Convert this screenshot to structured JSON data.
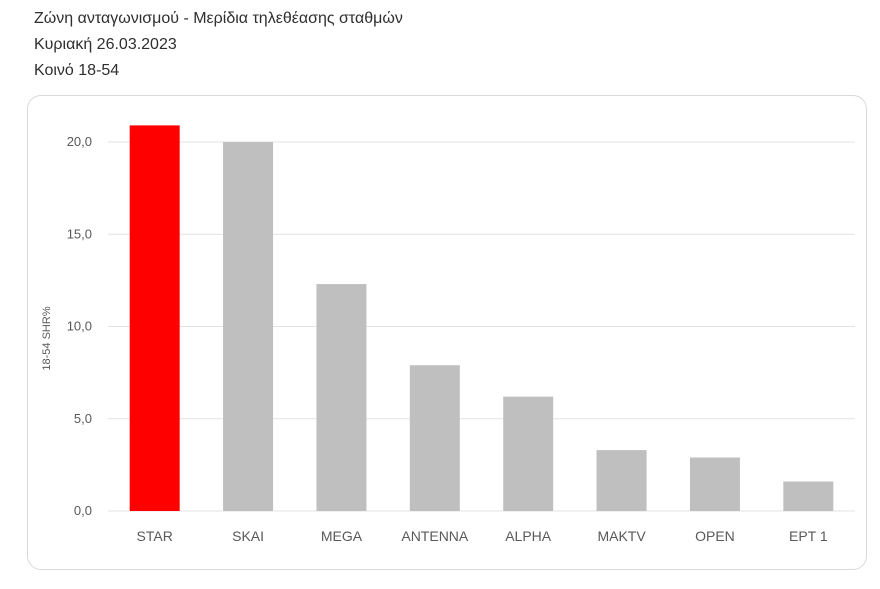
{
  "header": {
    "title": "Ζώνη ανταγωνισμού - Μερίδια τηλεθέασης σταθμών",
    "date": "Κυριακή 26.03.2023",
    "audience": "Κοινό 18-54"
  },
  "colors": {
    "highlight": "#ff0000",
    "bar": "#bfbfbf",
    "grid": "#e3e3e3",
    "axis_text": "#595959"
  },
  "chart_data": {
    "type": "bar",
    "title": "Ζώνη ανταγωνισμού - Μερίδια τηλεθέασης σταθμών",
    "ylabel": "18-54 SHR%",
    "xlabel": "",
    "categories": [
      "STAR",
      "SKAI",
      "MEGA",
      "ANTENNA",
      "ALPHA",
      "MAKTV",
      "OPEN",
      "EPT 1"
    ],
    "values": [
      20.9,
      20.0,
      12.3,
      7.9,
      6.2,
      3.3,
      2.9,
      1.6
    ],
    "highlight_index": 0,
    "ylim": [
      0,
      20
    ],
    "yticks": [
      0,
      5,
      10,
      15,
      20
    ],
    "ytick_labels": [
      "0,0",
      "5,0",
      "10,0",
      "15,0",
      "20,0"
    ],
    "grid": true,
    "legend": "none"
  }
}
